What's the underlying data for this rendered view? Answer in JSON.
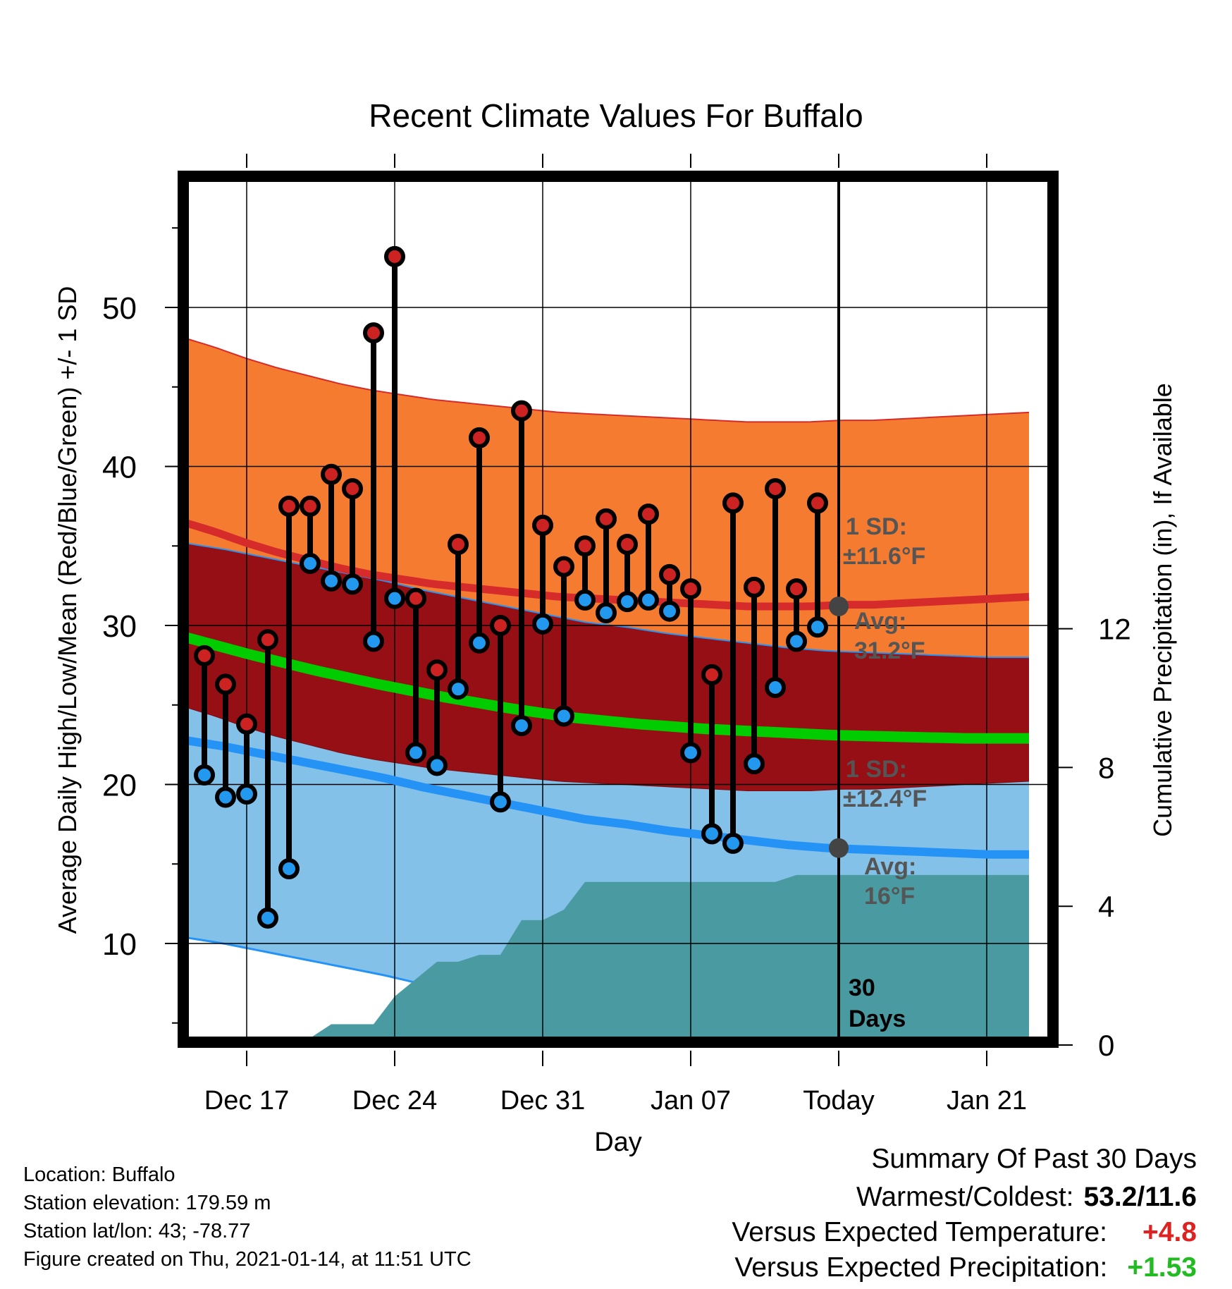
{
  "chart_data": {
    "type": "line",
    "title": "Recent Climate Values For Buffalo",
    "xlabel": "Day",
    "ylabel": "Average Daily High/Low/Mean (Red/Blue/Green) +/- 1 SD",
    "y2label": "Cumulative Precipitation (in), If Available",
    "x_ticks": [
      "Dec 17",
      "Dec 24",
      "Dec 31",
      "Jan 07",
      "Today",
      "Jan 21"
    ],
    "x_range_days": [
      -31,
      9
    ],
    "y_ticks": [
      "10",
      "20",
      "30",
      "40",
      "50"
    ],
    "ylim": [
      4,
      59
    ],
    "y2_ticks": [
      "0",
      "4",
      "8",
      "12"
    ],
    "y2lim": [
      0,
      24.6
    ],
    "days": [
      -30,
      -29,
      -28,
      -27,
      -26,
      -25,
      -24,
      -23,
      -22,
      -21,
      -20,
      -19,
      -18,
      -17,
      -16,
      -15,
      -14,
      -13,
      -12,
      -11,
      -10,
      -9,
      -8,
      -7,
      -6,
      -5,
      -4,
      -3,
      -2,
      -1
    ],
    "series": [
      {
        "name": "High",
        "color": "#cc2222",
        "values": [
          28.1,
          26.3,
          23.8,
          29.1,
          37.5,
          37.5,
          39.5,
          38.6,
          48.4,
          53.2,
          31.7,
          27.2,
          35.1,
          41.8,
          30.0,
          43.5,
          36.3,
          33.7,
          35.0,
          36.7,
          35.1,
          37.0,
          33.2,
          32.3,
          26.9,
          37.7,
          32.4,
          38.6,
          32.3,
          37.7
        ]
      },
      {
        "name": "Low",
        "color": "#2299ee",
        "values": [
          20.6,
          19.2,
          19.4,
          11.6,
          14.7,
          33.9,
          32.8,
          32.6,
          29.0,
          31.7,
          22.0,
          21.2,
          26.0,
          28.9,
          18.9,
          23.7,
          30.1,
          24.3,
          31.6,
          30.8,
          31.5,
          31.6,
          30.9,
          22.0,
          16.9,
          16.3,
          21.3,
          26.1,
          29.0,
          29.9
        ]
      },
      {
        "name": "Cumulative Precipitation",
        "values": [
          0,
          0,
          0.1,
          0.1,
          0.1,
          0.2,
          0.6,
          0.6,
          0.6,
          1.4,
          1.9,
          2.4,
          2.4,
          2.6,
          2.6,
          3.6,
          3.6,
          3.9,
          4.7,
          4.7,
          4.7,
          4.7,
          4.7,
          4.7,
          4.7,
          4.7,
          4.7,
          4.7,
          4.9,
          4.9,
          4.9,
          4.9,
          4.9,
          4.9,
          4.9,
          4.9,
          4.9,
          4.9,
          4.9,
          4.9
        ],
        "x_start": -30
      }
    ],
    "normals": {
      "high_avg": [
        36.5,
        35.9,
        35.2,
        34.6,
        34.1,
        33.6,
        33.2,
        32.9,
        32.6,
        32.4,
        32.2,
        32.0,
        31.8,
        31.7,
        31.6,
        31.5,
        31.4,
        31.3,
        31.2,
        31.2,
        31.2,
        31.3,
        31.3,
        31.4,
        31.5,
        31.6,
        31.7,
        31.8
      ],
      "high_sd": 11.6,
      "low_avg": [
        22.8,
        22.4,
        21.9,
        21.4,
        20.9,
        20.4,
        19.8,
        19.3,
        18.8,
        18.3,
        17.8,
        17.5,
        17.1,
        16.8,
        16.5,
        16.2,
        16.0,
        15.9,
        15.8,
        15.7,
        15.6,
        15.6
      ],
      "low_sd": 12.4,
      "mean_avg": [
        29.3,
        28.2,
        27.2,
        26.3,
        25.5,
        24.8,
        24.2,
        23.8,
        23.5,
        23.3,
        23.1,
        23.0,
        22.9,
        22.9
      ]
    },
    "annotations": {
      "high_sd_label": "1 SD:",
      "high_sd_value": "±11.6°F",
      "high_avg_label": "Avg:",
      "high_avg_value": "31.2°F",
      "low_sd_label": "1 SD:",
      "low_sd_value": "±12.4°F",
      "low_avg_label": "Avg:",
      "low_avg_value": "16°F",
      "days_count": "30",
      "days_word": "Days"
    },
    "colors": {
      "high_band": "#f47b30",
      "overlap_band": "#960f14",
      "low_band": "#83c1e8",
      "precip": "#4a9aa2",
      "high_line": "#d62b2b",
      "low_line": "#2593f5",
      "mean_line": "#00cc00",
      "avg_marker": "#444444",
      "high_dot": "#cc2222",
      "low_dot": "#2299ee"
    }
  },
  "info": {
    "location": "Location: Buffalo",
    "elevation": "Station elevation: 179.59 m",
    "latlon": "Station lat/lon: 43; -78.77",
    "created": "Figure created on Thu, 2021-01-14, at 11:51 UTC"
  },
  "summary": {
    "title": "Summary Of Past 30 Days",
    "warmest_label": "Warmest/Coldest:",
    "warmest_value": "53.2/11.6",
    "temp_label": "Versus Expected Temperature:",
    "temp_value": "+4.8",
    "temp_color": "#dd2222",
    "precip_label": "Versus Expected Precipitation:",
    "precip_value": "+1.53",
    "precip_color": "#22bb22"
  }
}
